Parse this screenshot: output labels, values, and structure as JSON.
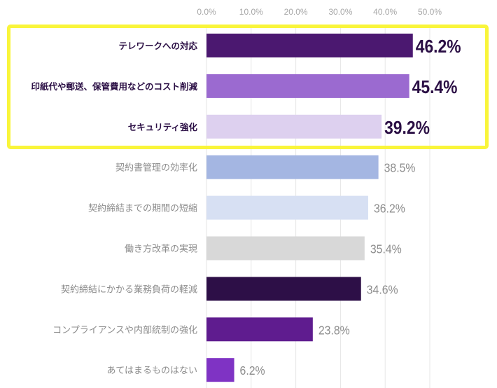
{
  "chart_data": {
    "type": "bar",
    "orientation": "horizontal",
    "title": "",
    "xlabel": "",
    "ylabel": "",
    "xlim": [
      0,
      50
    ],
    "x_ticks": [
      "0.0%",
      "10.0%",
      "20.0%",
      "30.0%",
      "40.0%",
      "50.0%"
    ],
    "grid": true,
    "categories": [
      "テレワークへの対応",
      "印紙代や郵送、保管費用などのコスト削減",
      "セキュリティ強化",
      "契約書管理の効率化",
      "契約締結までの期間の短縮",
      "働き方改革の実現",
      "契約締結にかかる業務負荷の軽減",
      "コンプライアンスや内部統制の強化",
      "あてはまるものはない"
    ],
    "values": [
      46.2,
      45.4,
      39.2,
      38.5,
      36.2,
      35.4,
      34.6,
      23.8,
      6.2
    ],
    "value_labels": [
      "46.2%",
      "45.4%",
      "39.2%",
      "38.5%",
      "36.2%",
      "35.4%",
      "34.6%",
      "23.8%",
      "6.2%"
    ],
    "colors": [
      "#4b1870",
      "#9b6ad0",
      "#ddd0ef",
      "#a4b6e2",
      "#d7e0f3",
      "#d8d8d8",
      "#2d0f47",
      "#5f1c8f",
      "#7f33c4"
    ],
    "highlighted_count": 3,
    "highlight_color": "#f9f53a"
  }
}
